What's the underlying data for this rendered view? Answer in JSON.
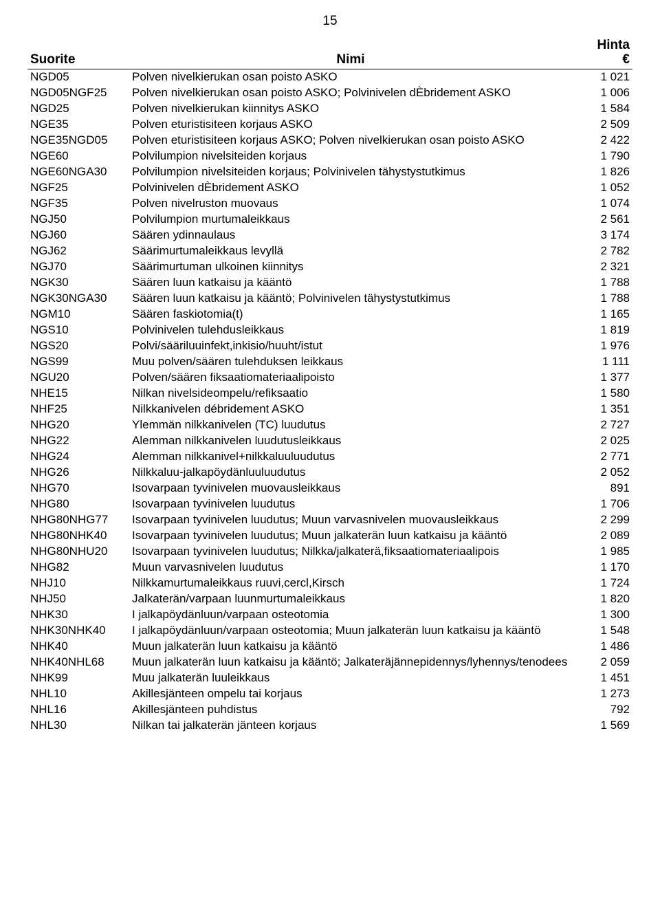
{
  "pageNumber": "15",
  "header": {
    "code": "Suorite",
    "name": "Nimi",
    "price": "Hinta\n€"
  },
  "rows": [
    {
      "code": "NGD05",
      "name": "Polven nivelkierukan osan poisto ASKO",
      "price": "1 021"
    },
    {
      "code": "NGD05NGF25",
      "name": "Polven nivelkierukan osan poisto ASKO; Polvinivelen dÈbridement ASKO",
      "price": "1 006"
    },
    {
      "code": "NGD25",
      "name": "Polven nivelkierukan kiinnitys ASKO",
      "price": "1 584"
    },
    {
      "code": "NGE35",
      "name": "Polven eturistisiteen korjaus ASKO",
      "price": "2 509"
    },
    {
      "code": "NGE35NGD05",
      "name": "Polven eturistisiteen korjaus ASKO; Polven nivelkierukan osan poisto ASKO",
      "price": "2 422"
    },
    {
      "code": "NGE60",
      "name": "Polvilumpion nivelsiteiden korjaus",
      "price": "1 790"
    },
    {
      "code": "NGE60NGA30",
      "name": "Polvilumpion nivelsiteiden korjaus; Polvinivelen tähystystutkimus",
      "price": "1 826"
    },
    {
      "code": "NGF25",
      "name": "Polvinivelen dÈbridement ASKO",
      "price": "1 052"
    },
    {
      "code": "NGF35",
      "name": "Polven nivelruston muovaus",
      "price": "1 074"
    },
    {
      "code": "NGJ50",
      "name": "Polvilumpion murtumaleikkaus",
      "price": "2 561"
    },
    {
      "code": "NGJ60",
      "name": "Säären ydinnaulaus",
      "price": "3 174"
    },
    {
      "code": "NGJ62",
      "name": "Säärimurtumaleikkaus levyllä",
      "price": "2 782"
    },
    {
      "code": "NGJ70",
      "name": "Säärimurtuman ulkoinen kiinnitys",
      "price": "2 321"
    },
    {
      "code": "NGK30",
      "name": "Säären luun katkaisu ja kääntö",
      "price": "1 788"
    },
    {
      "code": "NGK30NGA30",
      "name": "Säären luun katkaisu ja kääntö; Polvinivelen tähystystutkimus",
      "price": "1 788"
    },
    {
      "code": "NGM10",
      "name": "Säären faskiotomia(t)",
      "price": "1 165"
    },
    {
      "code": "NGS10",
      "name": "Polvinivelen tulehdusleikkaus",
      "price": "1 819"
    },
    {
      "code": "NGS20",
      "name": "Polvi/sääriluuinfekt,inkisio/huuht/istut",
      "price": "1 976"
    },
    {
      "code": "NGS99",
      "name": "Muu polven/säären tulehduksen leikkaus",
      "price": "1 111"
    },
    {
      "code": "NGU20",
      "name": "Polven/säären fiksaatiomateriaalipoisto",
      "price": "1 377"
    },
    {
      "code": "NHE15",
      "name": "Nilkan nivelsideompelu/refiksaatio",
      "price": "1 580"
    },
    {
      "code": "NHF25",
      "name": "Nilkkanivelen débridement ASKO",
      "price": "1 351"
    },
    {
      "code": "NHG20",
      "name": "Ylemmän nilkkanivelen (TC) luudutus",
      "price": "2 727"
    },
    {
      "code": "NHG22",
      "name": "Alemman nilkkanivelen luudutusleikkaus",
      "price": "2 025"
    },
    {
      "code": "NHG24",
      "name": "Alemman nilkkanivel+nilkkaluuluudutus",
      "price": "2 771"
    },
    {
      "code": "NHG26",
      "name": "Nilkkaluu-jalkapöydänluuluudutus",
      "price": "2 052"
    },
    {
      "code": "NHG70",
      "name": "Isovarpaan tyvinivelen muovausleikkaus",
      "price": "891"
    },
    {
      "code": "NHG80",
      "name": "Isovarpaan tyvinivelen luudutus",
      "price": "1 706"
    },
    {
      "code": "NHG80NHG77",
      "name": "Isovarpaan tyvinivelen luudutus; Muun varvasnivelen muovausleikkaus",
      "price": "2 299"
    },
    {
      "code": "NHG80NHK40",
      "name": "Isovarpaan tyvinivelen luudutus; Muun jalkaterän luun katkaisu ja kääntö",
      "price": "2 089"
    },
    {
      "code": "NHG80NHU20",
      "name": "Isovarpaan tyvinivelen luudutus; Nilkka/jalkaterä,fiksaatiomateriaalipois",
      "price": "1 985"
    },
    {
      "code": "NHG82",
      "name": "Muun varvasnivelen luudutus",
      "price": "1 170"
    },
    {
      "code": "NHJ10",
      "name": "Nilkkamurtumaleikkaus ruuvi,cercl,Kirsch",
      "price": "1 724"
    },
    {
      "code": "NHJ50",
      "name": "Jalkaterän/varpaan luunmurtumaleikkaus",
      "price": "1 820"
    },
    {
      "code": "NHK30",
      "name": "I jalkapöydänluun/varpaan osteotomia",
      "price": "1 300"
    },
    {
      "code": "NHK30NHK40",
      "name": "I jalkapöydänluun/varpaan osteotomia; Muun jalkaterän luun katkaisu ja kääntö",
      "price": "1 548"
    },
    {
      "code": "NHK40",
      "name": "Muun jalkaterän luun katkaisu ja kääntö",
      "price": "1 486"
    },
    {
      "code": "NHK40NHL68",
      "name": "Muun jalkaterän luun katkaisu ja kääntö; Jalkateräjännepidennys/lyhennys/tenodees",
      "price": "2 059"
    },
    {
      "code": "NHK99",
      "name": "Muu jalkaterän luuleikkaus",
      "price": "1 451"
    },
    {
      "code": "NHL10",
      "name": "Akillesjänteen ompelu tai korjaus",
      "price": "1 273"
    },
    {
      "code": "NHL16",
      "name": "Akillesjänteen puhdistus",
      "price": "792"
    },
    {
      "code": "NHL30",
      "name": "Nilkan tai jalkaterän jänteen korjaus",
      "price": "1 569"
    }
  ]
}
